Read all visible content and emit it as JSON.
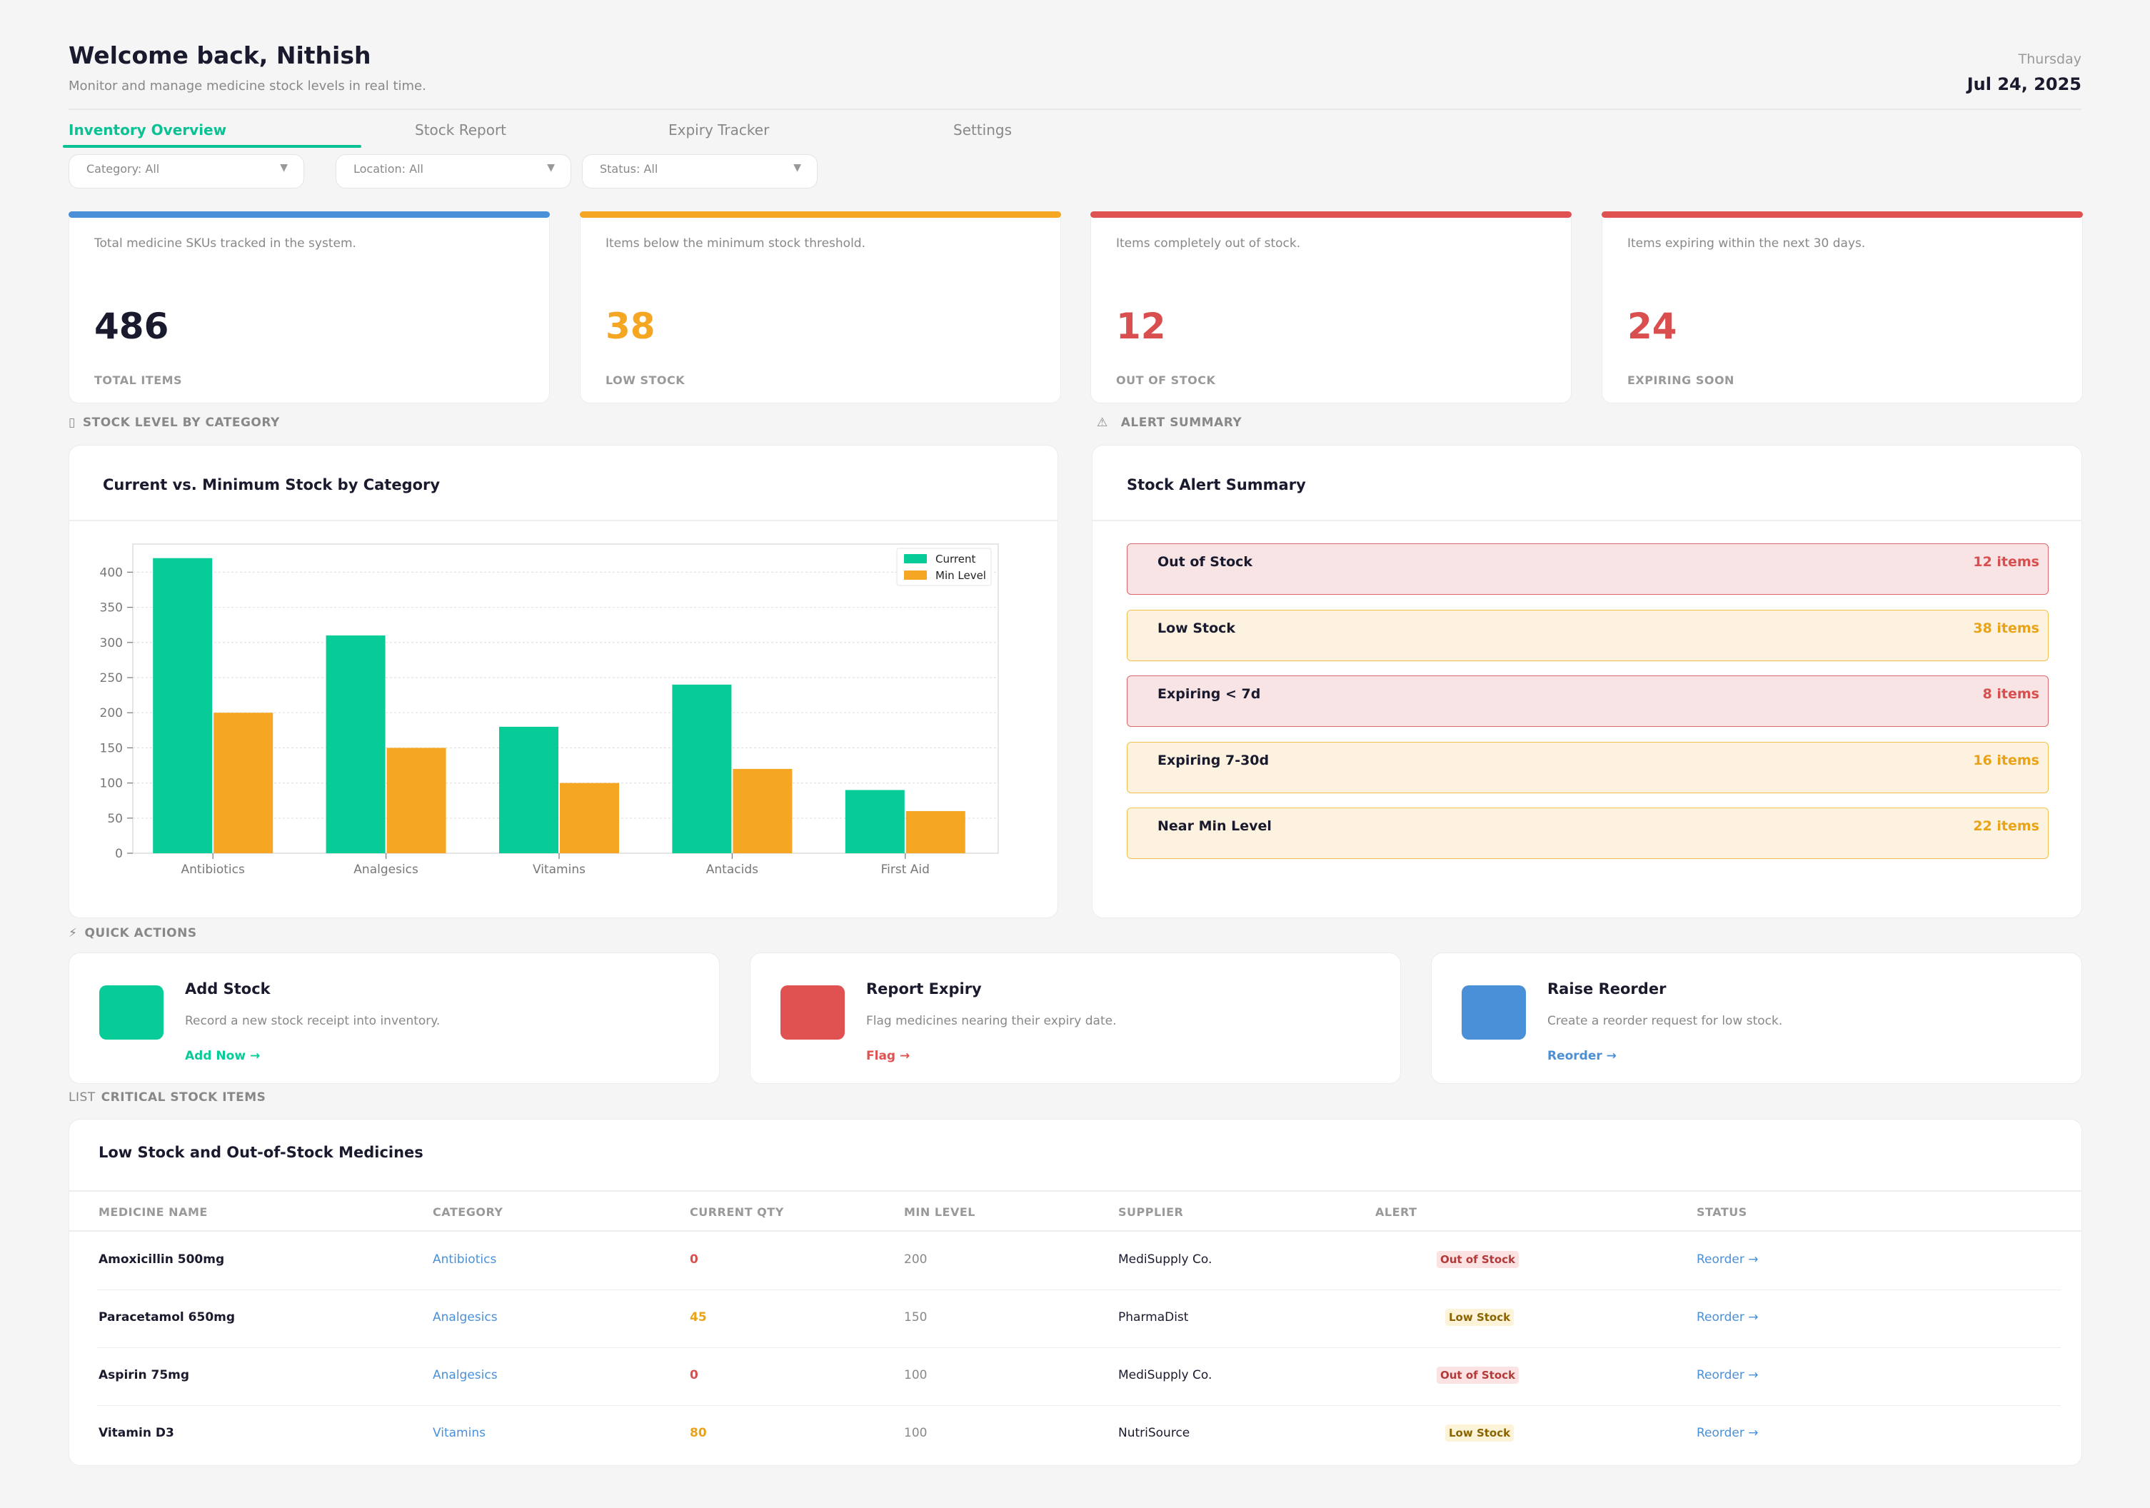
{
  "header": {
    "title": "Welcome back, Nithish",
    "subtitle": "Monitor and manage medicine stock levels in real time.",
    "weekday": "Thursday",
    "date": "Jul 24, 2025"
  },
  "tabs": [
    {
      "label": "Inventory Overview",
      "active": true
    },
    {
      "label": "Stock Report",
      "active": false
    },
    {
      "label": "Expiry Tracker",
      "active": false
    },
    {
      "label": "Settings",
      "active": false
    }
  ],
  "filters": [
    {
      "label": "Category: All"
    },
    {
      "label": "Location: All"
    },
    {
      "label": "Status: All"
    }
  ],
  "kpis": [
    {
      "desc": "Total medicine SKUs tracked in the system.",
      "value": "486",
      "label": "TOTAL ITEMS",
      "accent": "#4a90d9",
      "value_color": "#1a1a2e"
    },
    {
      "desc": "Items below the minimum stock threshold.",
      "value": "38",
      "label": "LOW STOCK",
      "accent": "#f5a623",
      "value_color": "#f5a623"
    },
    {
      "desc": "Items completely out of stock.",
      "value": "12",
      "label": "OUT OF STOCK",
      "accent": "#e05252",
      "value_color": "#d94f4f"
    },
    {
      "desc": "Items expiring within the next 30 days.",
      "value": "24",
      "label": "EXPIRING SOON",
      "accent": "#e05252",
      "value_color": "#d94f4f"
    }
  ],
  "sections": {
    "stock_level": {
      "icon": "bar-chart-icon",
      "icon_glyph": "▯",
      "label": "STOCK LEVEL BY CATEGORY"
    },
    "alert_summary": {
      "icon": "warning-icon",
      "icon_glyph": "⚠",
      "label": "ALERT SUMMARY"
    },
    "quick_actions": {
      "icon": "lightning-icon",
      "icon_glyph": "⚡",
      "label": "QUICK ACTIONS"
    },
    "critical": {
      "icon": "list-icon",
      "icon_glyph": "LIST",
      "label": "CRITICAL STOCK ITEMS"
    }
  },
  "chart_panel": {
    "title": "Current vs. Minimum Stock by Category"
  },
  "chart_data": {
    "type": "bar",
    "categories": [
      "Antibiotics",
      "Analgesics",
      "Vitamins",
      "Antacids",
      "First Aid"
    ],
    "series": [
      {
        "name": "Current",
        "values": [
          420,
          310,
          180,
          240,
          90
        ],
        "color": "#08cc98"
      },
      {
        "name": "Min Level",
        "values": [
          200,
          150,
          100,
          120,
          60
        ],
        "color": "#f5a623"
      }
    ],
    "yticks": [
      "0",
      "50",
      "100",
      "150",
      "200",
      "250",
      "300",
      "350",
      "400"
    ],
    "ylim": [
      0,
      440
    ],
    "grid": true,
    "legend": "top-right"
  },
  "alert_panel": {
    "title": "Stock Alert Summary",
    "rows": [
      {
        "label": "Out of Stock",
        "count": "12 items",
        "severity": "critical",
        "bg": "#f8e4e4",
        "border": "#d9686a",
        "color": "#d94f4f"
      },
      {
        "label": "Low Stock",
        "count": "38 items",
        "severity": "warning",
        "bg": "#fdf1e0",
        "border": "#f0c24a",
        "color": "#e8a317"
      },
      {
        "label": "Expiring < 7d",
        "count": "8 items",
        "severity": "critical",
        "bg": "#f8e4e4",
        "border": "#d9686a",
        "color": "#d94f4f"
      },
      {
        "label": "Expiring 7-30d",
        "count": "16 items",
        "severity": "warning",
        "bg": "#fdf1e0",
        "border": "#f0c24a",
        "color": "#e8a317"
      },
      {
        "label": "Near Min Level",
        "count": "22 items",
        "severity": "warning",
        "bg": "#fdf1e0",
        "border": "#f0c24a",
        "color": "#e8a317"
      }
    ]
  },
  "quick_actions": [
    {
      "title": "Add Stock",
      "desc": "Record a new stock receipt into inventory.",
      "link": "Add Now →",
      "color": "#08cc98",
      "icon": "add-stock-icon"
    },
    {
      "title": "Report Expiry",
      "desc": "Flag medicines nearing their expiry date.",
      "link": "Flag →",
      "color": "#e05252",
      "icon": "report-expiry-icon"
    },
    {
      "title": "Raise Reorder",
      "desc": "Create a reorder request for low stock.",
      "link": "Reorder →",
      "color": "#4a90d9",
      "icon": "raise-reorder-icon"
    }
  ],
  "table": {
    "title": "Low Stock and Out-of-Stock Medicines",
    "columns": [
      "MEDICINE NAME",
      "CATEGORY",
      "CURRENT QTY",
      "MIN LEVEL",
      "SUPPLIER",
      "ALERT",
      "STATUS"
    ],
    "rows": [
      {
        "name": "Amoxicillin 500mg",
        "category": "Antibiotics",
        "qty": "0",
        "qty_color": "#d94f4f",
        "min": "200",
        "supplier": "MediSupply Co.",
        "alert": "Out of Stock",
        "alert_type": "out",
        "status": "Reorder →"
      },
      {
        "name": "Paracetamol 650mg",
        "category": "Analgesics",
        "qty": "45",
        "qty_color": "#e8a317",
        "min": "150",
        "supplier": "PharmaDist",
        "alert": "Low Stock",
        "alert_type": "low",
        "status": "Reorder →"
      },
      {
        "name": "Aspirin 75mg",
        "category": "Analgesics",
        "qty": "0",
        "qty_color": "#d94f4f",
        "min": "100",
        "supplier": "MediSupply Co.",
        "alert": "Out of Stock",
        "alert_type": "out",
        "status": "Reorder →"
      },
      {
        "name": "Vitamin D3",
        "category": "Vitamins",
        "qty": "80",
        "qty_color": "#e8a317",
        "min": "100",
        "supplier": "NutriSource",
        "alert": "Low Stock",
        "alert_type": "low",
        "status": "Reorder →"
      }
    ]
  }
}
